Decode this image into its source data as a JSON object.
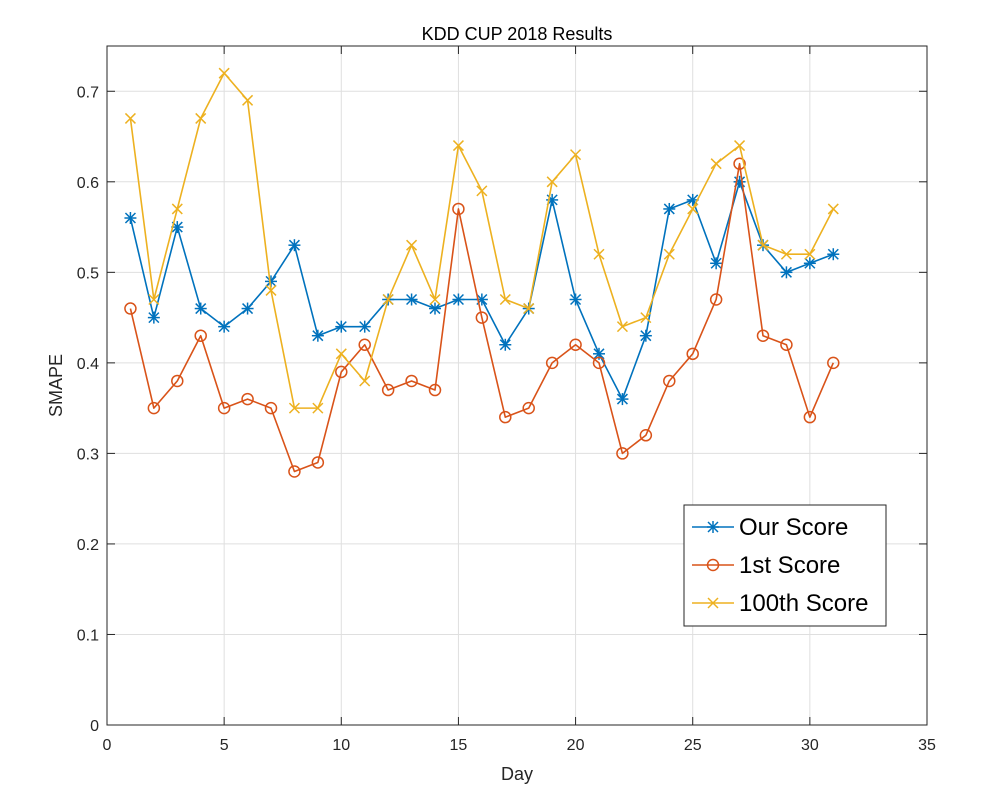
{
  "chart_data": {
    "type": "line",
    "title": "KDD CUP 2018 Results",
    "xlabel": "Day",
    "ylabel": "SMAPE",
    "xlim": [
      0,
      35
    ],
    "ylim": [
      0,
      0.75
    ],
    "xticks": [
      0,
      5,
      10,
      15,
      20,
      25,
      30,
      35
    ],
    "yticks": [
      0,
      0.1,
      0.2,
      0.3,
      0.4,
      0.5,
      0.6,
      0.7
    ],
    "xtick_labels": [
      "0",
      "5",
      "10",
      "15",
      "20",
      "25",
      "30",
      "35"
    ],
    "ytick_labels": [
      "0",
      "0.1",
      "0.2",
      "0.3",
      "0.4",
      "0.5",
      "0.6",
      "0.7"
    ],
    "grid": true,
    "legend_position": "lower-right",
    "x": [
      1,
      2,
      3,
      4,
      5,
      6,
      7,
      8,
      9,
      10,
      11,
      12,
      13,
      14,
      15,
      16,
      17,
      18,
      19,
      20,
      21,
      22,
      23,
      24,
      25,
      26,
      27,
      28,
      29,
      30,
      31
    ],
    "series": [
      {
        "name": "Our Score",
        "color": "#0072BD",
        "marker": "asterisk",
        "values": [
          0.56,
          0.45,
          0.55,
          0.46,
          0.44,
          0.46,
          0.49,
          0.53,
          0.43,
          0.44,
          0.44,
          0.47,
          0.47,
          0.46,
          0.47,
          0.47,
          0.42,
          0.46,
          0.58,
          0.47,
          0.41,
          0.36,
          0.43,
          0.57,
          0.58,
          0.51,
          0.6,
          0.53,
          0.5,
          0.51,
          0.52
        ]
      },
      {
        "name": "1st Score",
        "color": "#D95319",
        "marker": "circle",
        "values": [
          0.46,
          0.35,
          0.38,
          0.43,
          0.35,
          0.36,
          0.35,
          0.28,
          0.29,
          0.39,
          0.42,
          0.37,
          0.38,
          0.37,
          0.57,
          0.45,
          0.34,
          0.35,
          0.4,
          0.42,
          0.4,
          0.3,
          0.32,
          0.38,
          0.41,
          0.47,
          0.62,
          0.43,
          0.42,
          0.34,
          0.4
        ]
      },
      {
        "name": "100th Score",
        "color": "#EDB120",
        "marker": "x",
        "values": [
          0.67,
          0.47,
          0.57,
          0.67,
          0.72,
          0.69,
          0.48,
          0.35,
          0.35,
          0.41,
          0.38,
          0.47,
          0.53,
          0.47,
          0.64,
          0.59,
          0.47,
          0.46,
          0.6,
          0.63,
          0.52,
          0.44,
          0.45,
          0.52,
          0.57,
          0.62,
          0.64,
          0.53,
          0.52,
          0.52,
          0.57
        ]
      }
    ]
  }
}
